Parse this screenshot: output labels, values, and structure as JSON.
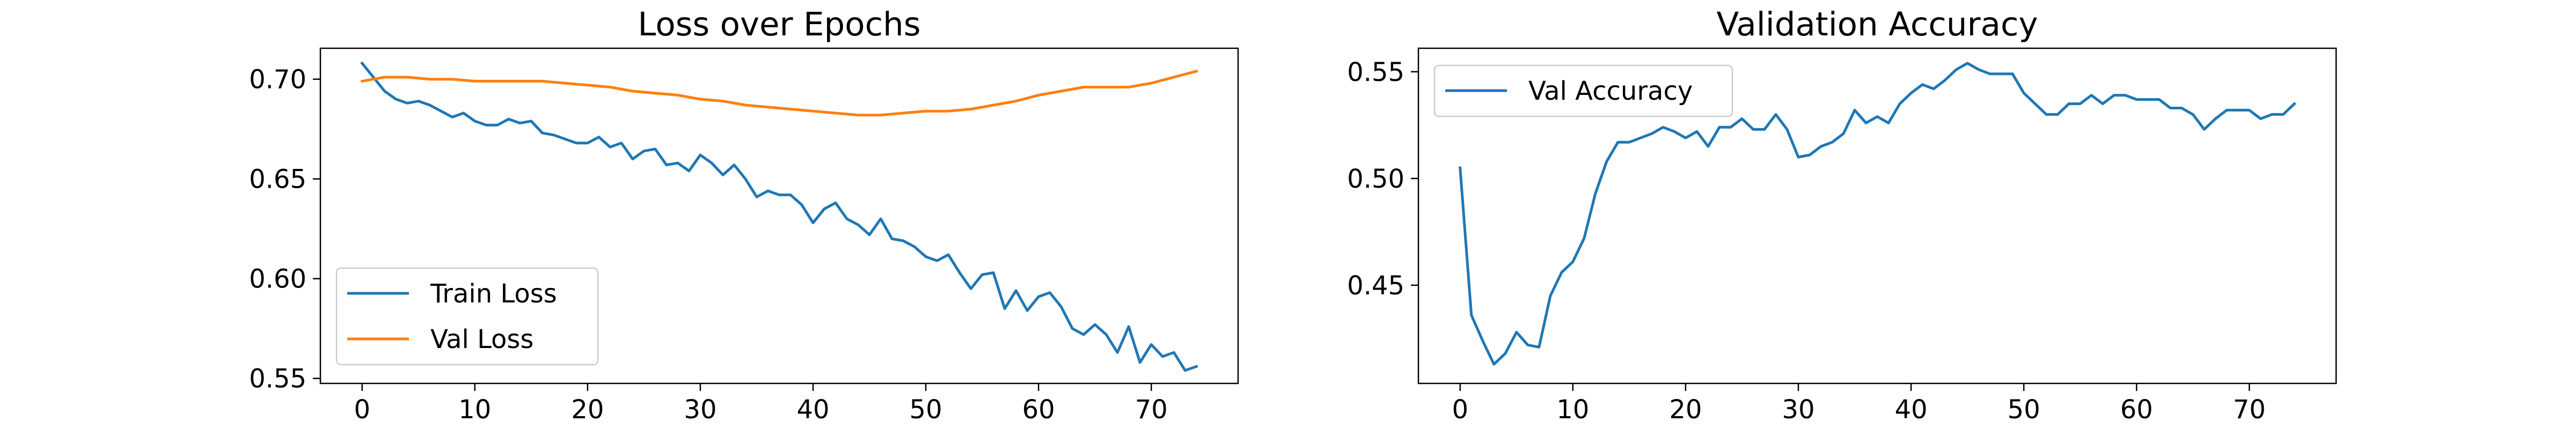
{
  "chart_data": [
    {
      "type": "line",
      "title": "Loss over Epochs",
      "xlabel": "",
      "ylabel": "",
      "xlim": [
        -3.7,
        77.7
      ],
      "ylim": [
        0.5475,
        0.7155
      ],
      "xticks": [
        0,
        10,
        20,
        30,
        40,
        50,
        60,
        70
      ],
      "yticks": [
        0.55,
        0.6,
        0.65,
        0.7
      ],
      "ytick_labels": [
        "0.55",
        "0.60",
        "0.65",
        "0.70"
      ],
      "grid": false,
      "legend_position": "lower-left",
      "series": [
        {
          "name": "Train Loss",
          "color": "#1f77b4",
          "x": [
            0,
            1,
            2,
            3,
            4,
            5,
            6,
            7,
            8,
            9,
            10,
            11,
            12,
            13,
            14,
            15,
            16,
            17,
            18,
            19,
            20,
            21,
            22,
            23,
            24,
            25,
            26,
            27,
            28,
            29,
            30,
            31,
            32,
            33,
            34,
            35,
            36,
            37,
            38,
            39,
            40,
            41,
            42,
            43,
            44,
            45,
            46,
            47,
            48,
            49,
            50,
            51,
            52,
            53,
            54,
            55,
            56,
            57,
            58,
            59,
            60,
            61,
            62,
            63,
            64,
            65,
            66,
            67,
            68,
            69,
            70,
            71,
            72,
            73,
            74
          ],
          "values": [
            0.708,
            0.701,
            0.694,
            0.69,
            0.688,
            0.689,
            0.687,
            0.684,
            0.681,
            0.683,
            0.679,
            0.677,
            0.677,
            0.68,
            0.678,
            0.679,
            0.673,
            0.672,
            0.67,
            0.668,
            0.668,
            0.671,
            0.666,
            0.668,
            0.66,
            0.664,
            0.665,
            0.657,
            0.658,
            0.654,
            0.662,
            0.658,
            0.652,
            0.657,
            0.65,
            0.641,
            0.644,
            0.642,
            0.642,
            0.637,
            0.628,
            0.635,
            0.638,
            0.63,
            0.627,
            0.622,
            0.63,
            0.62,
            0.619,
            0.616,
            0.611,
            0.609,
            0.612,
            0.603,
            0.595,
            0.602,
            0.603,
            0.585,
            0.594,
            0.584,
            0.591,
            0.593,
            0.586,
            0.575,
            0.572,
            0.577,
            0.572,
            0.563,
            0.576,
            0.558,
            0.567,
            0.561,
            0.563,
            0.554,
            0.556
          ]
        },
        {
          "name": "Val Loss",
          "color": "#ff7f0e",
          "x": [
            0,
            2,
            4,
            6,
            8,
            10,
            12,
            14,
            16,
            18,
            20,
            22,
            24,
            26,
            28,
            30,
            32,
            34,
            36,
            38,
            40,
            42,
            44,
            46,
            48,
            50,
            52,
            54,
            56,
            58,
            60,
            62,
            64,
            66,
            68,
            70,
            72,
            74
          ],
          "values": [
            0.699,
            0.701,
            0.701,
            0.7,
            0.7,
            0.699,
            0.699,
            0.699,
            0.699,
            0.698,
            0.697,
            0.696,
            0.694,
            0.693,
            0.692,
            0.69,
            0.689,
            0.687,
            0.686,
            0.685,
            0.684,
            0.683,
            0.682,
            0.682,
            0.683,
            0.684,
            0.684,
            0.685,
            0.687,
            0.689,
            0.692,
            0.694,
            0.696,
            0.696,
            0.696,
            0.698,
            0.701,
            0.704
          ]
        }
      ]
    },
    {
      "type": "line",
      "title": "Validation Accuracy",
      "xlabel": "",
      "ylabel": "",
      "xlim": [
        -3.7,
        77.7
      ],
      "ylim": [
        0.404,
        0.561
      ],
      "xticks": [
        0,
        10,
        20,
        30,
        40,
        50,
        60,
        70
      ],
      "yticks": [
        0.45,
        0.5,
        0.55
      ],
      "ytick_labels": [
        "0.45",
        "0.50",
        "0.55"
      ],
      "grid": false,
      "legend_position": "upper-left",
      "series": [
        {
          "name": "Val Accuracy",
          "color": "#1f77b4",
          "x": [
            0,
            1,
            2,
            3,
            4,
            5,
            6,
            7,
            8,
            9,
            10,
            11,
            12,
            13,
            14,
            15,
            16,
            17,
            18,
            19,
            20,
            21,
            22,
            23,
            24,
            25,
            26,
            27,
            28,
            29,
            30,
            31,
            32,
            33,
            34,
            35,
            36,
            37,
            38,
            39,
            40,
            41,
            42,
            43,
            44,
            45,
            46,
            47,
            48,
            49,
            50,
            51,
            52,
            53,
            54,
            55,
            56,
            57,
            58,
            59,
            60,
            61,
            62,
            63,
            64,
            65,
            66,
            67,
            68,
            69,
            70,
            71,
            72,
            73,
            74
          ],
          "values": [
            0.505,
            0.436,
            0.424,
            0.413,
            0.418,
            0.428,
            0.422,
            0.421,
            0.445,
            0.456,
            0.461,
            0.472,
            0.493,
            0.508,
            0.517,
            0.517,
            0.519,
            0.521,
            0.524,
            0.522,
            0.519,
            0.522,
            0.515,
            0.524,
            0.524,
            0.528,
            0.523,
            0.523,
            0.53,
            0.523,
            0.51,
            0.511,
            0.515,
            0.517,
            0.521,
            0.532,
            0.526,
            0.529,
            0.526,
            0.535,
            0.54,
            0.544,
            0.542,
            0.546,
            0.551,
            0.554,
            0.551,
            0.549,
            0.549,
            0.549,
            0.54,
            0.535,
            0.53,
            0.53,
            0.535,
            0.535,
            0.539,
            0.535,
            0.539,
            0.539,
            0.537,
            0.537,
            0.537,
            0.533,
            0.533,
            0.53,
            0.523,
            0.528,
            0.532,
            0.532,
            0.532,
            0.528,
            0.53,
            0.53,
            0.535
          ]
        }
      ]
    }
  ]
}
